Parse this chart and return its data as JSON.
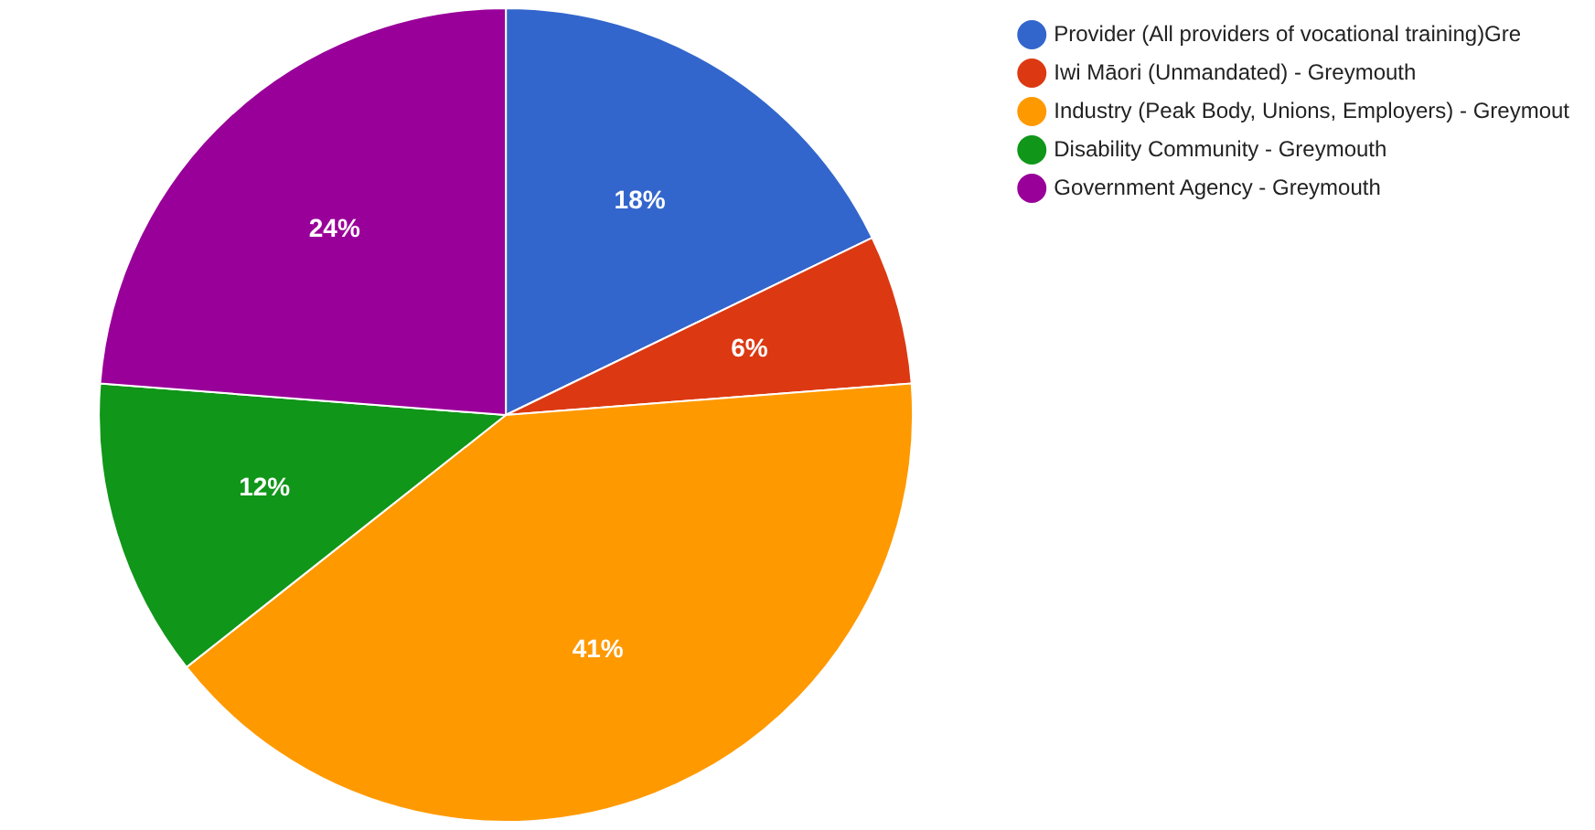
{
  "chart_data": {
    "type": "pie",
    "categories": [
      "Provider (All providers of vocational training)Gre",
      "Iwi Māori (Unmandated) - Greymouth",
      "Industry (Peak Body, Unions, Employers) - Greymout",
      "Disability Community - Greymouth",
      "Government Agency - Greymouth"
    ],
    "values": [
      18,
      6,
      41,
      12,
      24
    ],
    "colors": [
      "#3366cc",
      "#dc3912",
      "#ff9900",
      "#109618",
      "#990099"
    ],
    "value_labels": [
      "18%",
      "6%",
      "41%",
      "12%",
      "24%"
    ],
    "legend": "top right"
  }
}
